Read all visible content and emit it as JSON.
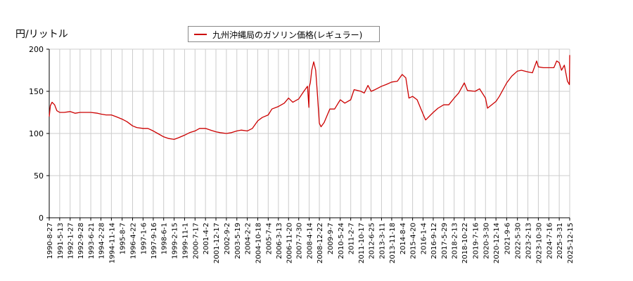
{
  "chart_data": {
    "type": "line",
    "ylabel": "円/リットル",
    "ylim": [
      0,
      200
    ],
    "yticks": [
      0,
      50,
      100,
      150,
      200
    ],
    "grid": true,
    "legend_position": "top-center",
    "line_color": "#cc0000",
    "xticks": [
      "1990-8-27",
      "1991-5-13",
      "1992-1-27",
      "1992-9-28",
      "1993-6-21",
      "1994-2-28",
      "1994-11-14",
      "1995-8-7",
      "1996-4-22",
      "1997-1-6",
      "1997-9-16",
      "1998-6-1",
      "1999-2-15",
      "1999-11-1",
      "2000-7-17",
      "2001-4-2",
      "2001-12-17",
      "2002-9-2",
      "2003-5-19",
      "2004-2-2",
      "2004-10-18",
      "2005-7-4",
      "2006-3-13",
      "2006-11-20",
      "2007-7-30",
      "2008-4-14",
      "2008-12-22",
      "2009-9-7",
      "2010-5-24",
      "2011-2-7",
      "2011-10-17",
      "2012-6-25",
      "2013-3-11",
      "2013-11-18",
      "2014-8-4",
      "2015-4-20",
      "2016-1-4",
      "2016-9-12",
      "2017-5-29",
      "2018-2-13",
      "2018-10-22",
      "2019-7-16",
      "2020-3-30",
      "2020-12-14",
      "2021-9-6",
      "2022-5-30",
      "2023-2-13",
      "2023-10-30",
      "2024-7-16",
      "2025-3-31",
      "2025-12-15"
    ],
    "series": [
      {
        "name": "九州沖縄局のガソリン価格(レギュラー)",
        "points": [
          [
            "1990-8-27",
            120
          ],
          [
            "1990-9-24",
            133
          ],
          [
            "1990-11-5",
            137
          ],
          [
            "1991-1-7",
            134
          ],
          [
            "1991-3-4",
            127
          ],
          [
            "1991-5-13",
            125
          ],
          [
            "1991-9-2",
            125
          ],
          [
            "1992-1-27",
            126
          ],
          [
            "1992-6-1",
            124
          ],
          [
            "1992-9-28",
            125
          ],
          [
            "1993-3-1",
            125
          ],
          [
            "1993-6-21",
            125
          ],
          [
            "1993-12-6",
            124
          ],
          [
            "1994-2-28",
            123
          ],
          [
            "1994-7-4",
            122
          ],
          [
            "1994-11-14",
            122
          ],
          [
            "1995-3-6",
            120
          ],
          [
            "1995-8-7",
            117
          ],
          [
            "1995-12-4",
            114
          ],
          [
            "1996-4-22",
            109
          ],
          [
            "1996-8-5",
            107
          ],
          [
            "1997-1-6",
            106
          ],
          [
            "1997-5-5",
            106
          ],
          [
            "1997-9-16",
            103
          ],
          [
            "1998-1-5",
            100
          ],
          [
            "1998-6-1",
            96
          ],
          [
            "1998-10-5",
            94
          ],
          [
            "1999-2-15",
            93
          ],
          [
            "1999-6-7",
            95
          ],
          [
            "1999-11-1",
            98
          ],
          [
            "2000-3-6",
            101
          ],
          [
            "2000-7-17",
            103
          ],
          [
            "2000-11-6",
            106
          ],
          [
            "2001-4-2",
            106
          ],
          [
            "2001-8-6",
            104
          ],
          [
            "2001-12-17",
            102
          ],
          [
            "2002-4-1",
            101
          ],
          [
            "2002-9-2",
            100
          ],
          [
            "2003-1-6",
            101
          ],
          [
            "2003-5-19",
            103
          ],
          [
            "2003-9-1",
            104
          ],
          [
            "2004-2-2",
            103
          ],
          [
            "2004-6-7",
            106
          ],
          [
            "2004-10-18",
            115
          ],
          [
            "2005-2-7",
            119
          ],
          [
            "2005-7-4",
            122
          ],
          [
            "2005-10-3",
            129
          ],
          [
            "2006-3-13",
            132
          ],
          [
            "2006-8-7",
            136
          ],
          [
            "2006-11-20",
            142
          ],
          [
            "2007-3-5",
            137
          ],
          [
            "2007-7-30",
            141
          ],
          [
            "2007-12-3",
            150
          ],
          [
            "2008-3-3",
            156
          ],
          [
            "2008-4-7",
            131
          ],
          [
            "2008-4-14",
            155
          ],
          [
            "2008-5-12",
            160
          ],
          [
            "2008-6-16",
            175
          ],
          [
            "2008-8-4",
            185
          ],
          [
            "2008-9-22",
            175
          ],
          [
            "2008-10-27",
            152
          ],
          [
            "2008-12-22",
            112
          ],
          [
            "2009-2-2",
            108
          ],
          [
            "2009-4-20",
            113
          ],
          [
            "2009-9-7",
            129
          ],
          [
            "2010-1-4",
            129
          ],
          [
            "2010-5-24",
            140
          ],
          [
            "2010-9-13",
            136
          ],
          [
            "2011-2-7",
            140
          ],
          [
            "2011-5-2",
            152
          ],
          [
            "2011-10-17",
            150
          ],
          [
            "2012-1-9",
            148
          ],
          [
            "2012-4-9",
            157
          ],
          [
            "2012-6-25",
            150
          ],
          [
            "2012-10-1",
            152
          ],
          [
            "2013-3-11",
            156
          ],
          [
            "2013-7-1",
            158
          ],
          [
            "2013-11-18",
            161
          ],
          [
            "2014-4-7",
            162
          ],
          [
            "2014-8-4",
            170
          ],
          [
            "2014-11-3",
            166
          ],
          [
            "2015-1-19",
            142
          ],
          [
            "2015-4-20",
            144
          ],
          [
            "2015-8-10",
            140
          ],
          [
            "2016-1-4",
            123
          ],
          [
            "2016-3-7",
            116
          ],
          [
            "2016-9-12",
            125
          ],
          [
            "2017-1-9",
            130
          ],
          [
            "2017-5-29",
            134
          ],
          [
            "2017-10-2",
            134
          ],
          [
            "2018-2-13",
            142
          ],
          [
            "2018-6-4",
            148
          ],
          [
            "2018-10-22",
            160
          ],
          [
            "2019-1-7",
            151
          ],
          [
            "2019-7-16",
            150
          ],
          [
            "2019-11-4",
            153
          ],
          [
            "2020-3-30",
            142
          ],
          [
            "2020-5-18",
            130
          ],
          [
            "2020-12-14",
            138
          ],
          [
            "2021-3-8",
            144
          ],
          [
            "2021-9-6",
            160
          ],
          [
            "2022-1-10",
            168
          ],
          [
            "2022-5-30",
            174
          ],
          [
            "2022-9-5",
            175
          ],
          [
            "2023-2-13",
            173
          ],
          [
            "2023-6-5",
            172
          ],
          [
            "2023-9-18",
            186
          ],
          [
            "2023-10-30",
            179
          ],
          [
            "2024-3-4",
            178
          ],
          [
            "2024-7-16",
            178
          ],
          [
            "2024-11-18",
            178
          ],
          [
            "2025-1-27",
            186
          ],
          [
            "2025-3-31",
            184
          ],
          [
            "2025-5-26",
            175
          ],
          [
            "2025-8-4",
            181
          ],
          [
            "2025-10-20",
            162
          ],
          [
            "2025-12-8",
            158
          ],
          [
            "2025-12-15",
            193
          ]
        ]
      }
    ]
  }
}
